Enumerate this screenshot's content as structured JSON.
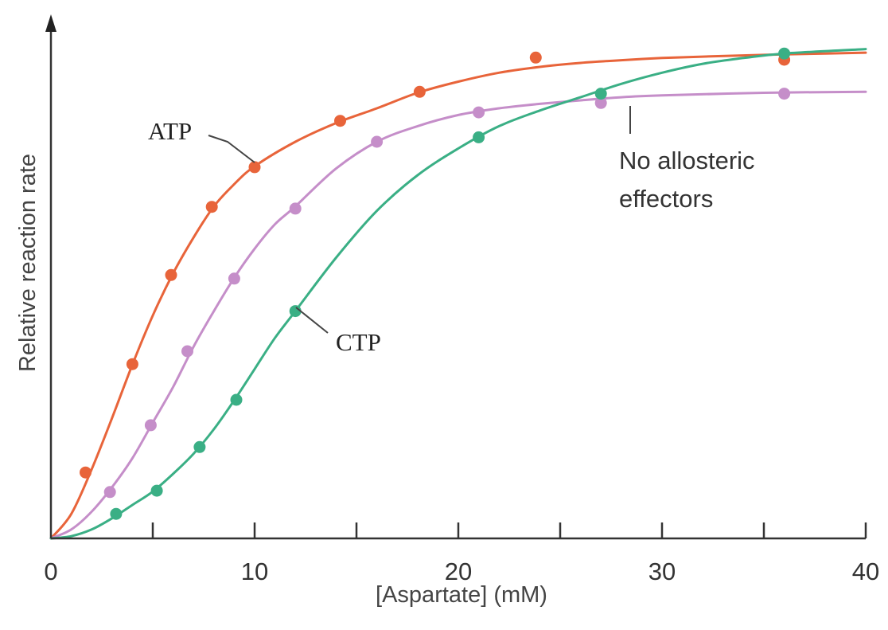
{
  "chart_data": {
    "type": "line",
    "title": "",
    "xlabel": "[Aspartate] (mM)",
    "ylabel": "Relative reaction rate",
    "xlim": [
      0,
      40
    ],
    "ylim": [
      0,
      1.1
    ],
    "x_ticks": [
      0,
      10,
      20,
      30,
      40
    ],
    "x_minor_ticks": [
      5,
      15,
      25,
      35
    ],
    "grid": false,
    "legend": "none",
    "series": [
      {
        "name": "ATP",
        "color": "#e8643a",
        "points": [
          {
            "x": 1.7,
            "y": 0.148
          },
          {
            "x": 4.0,
            "y": 0.391
          },
          {
            "x": 5.9,
            "y": 0.591
          },
          {
            "x": 7.9,
            "y": 0.744
          },
          {
            "x": 10.0,
            "y": 0.833
          },
          {
            "x": 14.2,
            "y": 0.937
          },
          {
            "x": 18.1,
            "y": 1.002
          },
          {
            "x": 23.8,
            "y": 1.079
          },
          {
            "x": 36.0,
            "y": 1.074
          }
        ],
        "curve": [
          [
            0,
            0
          ],
          [
            1,
            0.055
          ],
          [
            2,
            0.155
          ],
          [
            3,
            0.27
          ],
          [
            4,
            0.39
          ],
          [
            5,
            0.5
          ],
          [
            6,
            0.595
          ],
          [
            7,
            0.675
          ],
          [
            8,
            0.745
          ],
          [
            9,
            0.795
          ],
          [
            10,
            0.835
          ],
          [
            12,
            0.89
          ],
          [
            14,
            0.932
          ],
          [
            16,
            0.965
          ],
          [
            18,
            1.0
          ],
          [
            20,
            1.025
          ],
          [
            22,
            1.045
          ],
          [
            24,
            1.058
          ],
          [
            26,
            1.067
          ],
          [
            28,
            1.073
          ],
          [
            30,
            1.078
          ],
          [
            32,
            1.081
          ],
          [
            35,
            1.085
          ],
          [
            38,
            1.088
          ],
          [
            40,
            1.09
          ]
        ]
      },
      {
        "name": "No allosteric effectors",
        "color": "#c58ec9",
        "points": [
          {
            "x": 2.9,
            "y": 0.104
          },
          {
            "x": 4.9,
            "y": 0.254
          },
          {
            "x": 6.7,
            "y": 0.42
          },
          {
            "x": 9.0,
            "y": 0.583
          },
          {
            "x": 12.0,
            "y": 0.74
          },
          {
            "x": 16.0,
            "y": 0.89
          },
          {
            "x": 21.0,
            "y": 0.956
          },
          {
            "x": 27.0,
            "y": 0.977
          },
          {
            "x": 36.0,
            "y": 0.998
          }
        ],
        "curve": [
          [
            0,
            0
          ],
          [
            1,
            0.02
          ],
          [
            2,
            0.06
          ],
          [
            3,
            0.115
          ],
          [
            4,
            0.18
          ],
          [
            5,
            0.26
          ],
          [
            6,
            0.34
          ],
          [
            7,
            0.43
          ],
          [
            8,
            0.51
          ],
          [
            9,
            0.585
          ],
          [
            10,
            0.65
          ],
          [
            11,
            0.705
          ],
          [
            12,
            0.745
          ],
          [
            14,
            0.83
          ],
          [
            16,
            0.89
          ],
          [
            18,
            0.925
          ],
          [
            20,
            0.95
          ],
          [
            22,
            0.965
          ],
          [
            24,
            0.975
          ],
          [
            26,
            0.983
          ],
          [
            28,
            0.99
          ],
          [
            30,
            0.994
          ],
          [
            35,
            1.0
          ],
          [
            40,
            1.002
          ]
        ]
      },
      {
        "name": "CTP",
        "color": "#3aaf85",
        "points": [
          {
            "x": 3.2,
            "y": 0.055
          },
          {
            "x": 5.2,
            "y": 0.107
          },
          {
            "x": 7.3,
            "y": 0.205
          },
          {
            "x": 9.1,
            "y": 0.311
          },
          {
            "x": 12.0,
            "y": 0.51
          },
          {
            "x": 21.0,
            "y": 0.9
          },
          {
            "x": 27.0,
            "y": 0.998
          },
          {
            "x": 36.0,
            "y": 1.088
          }
        ],
        "curve": [
          [
            0,
            0
          ],
          [
            1,
            0.005
          ],
          [
            2,
            0.02
          ],
          [
            3,
            0.045
          ],
          [
            4,
            0.075
          ],
          [
            5,
            0.105
          ],
          [
            6,
            0.145
          ],
          [
            7,
            0.19
          ],
          [
            8,
            0.245
          ],
          [
            9,
            0.31
          ],
          [
            10,
            0.38
          ],
          [
            11,
            0.45
          ],
          [
            12,
            0.51
          ],
          [
            14,
            0.63
          ],
          [
            16,
            0.735
          ],
          [
            18,
            0.815
          ],
          [
            20,
            0.875
          ],
          [
            22,
            0.925
          ],
          [
            24,
            0.96
          ],
          [
            26,
            0.99
          ],
          [
            28,
            1.02
          ],
          [
            30,
            1.045
          ],
          [
            32,
            1.065
          ],
          [
            34,
            1.078
          ],
          [
            36,
            1.088
          ],
          [
            40,
            1.098
          ]
        ]
      }
    ],
    "annotations": {
      "atp_label": "ATP",
      "ctp_label": "CTP",
      "none_label_line1": "No allosteric",
      "none_label_line2": "effectors"
    },
    "colors": {
      "axis": "#333333",
      "leader": "#444444"
    }
  }
}
